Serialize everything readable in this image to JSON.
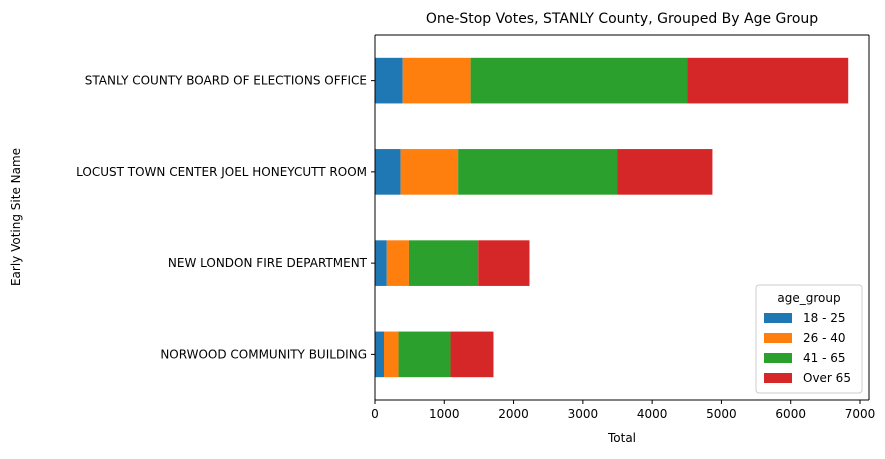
{
  "chart_data": {
    "type": "bar",
    "orientation": "horizontal",
    "stacked": true,
    "title": "One-Stop Votes, STANLY County, Grouped By Age Group",
    "xlabel": "Total",
    "ylabel": "Early Voting Site Name",
    "xlim": [
      0,
      7130
    ],
    "xticks": [
      0,
      1000,
      2000,
      3000,
      4000,
      5000,
      6000,
      7000
    ],
    "grid": false,
    "categories": [
      "STANLY COUNTY BOARD OF ELECTIONS OFFICE",
      "LOCUST TOWN CENTER JOEL HONEYCUTT ROOM",
      "NEW LONDON FIRE DEPARTMENT",
      "NORWOOD COMMUNITY BUILDING"
    ],
    "series": [
      {
        "name": "18 - 25",
        "color": "#1f77b4",
        "values": [
          400,
          370,
          170,
          130
        ]
      },
      {
        "name": "26 - 40",
        "color": "#ff7f0e",
        "values": [
          980,
          830,
          320,
          210
        ]
      },
      {
        "name": "41 - 65",
        "color": "#2ca02c",
        "values": [
          3130,
          2300,
          1000,
          750
        ]
      },
      {
        "name": "Over 65",
        "color": "#d62728",
        "values": [
          2320,
          1370,
          740,
          620
        ]
      }
    ],
    "legend": {
      "title": "age_group",
      "position": "lower-right"
    }
  }
}
